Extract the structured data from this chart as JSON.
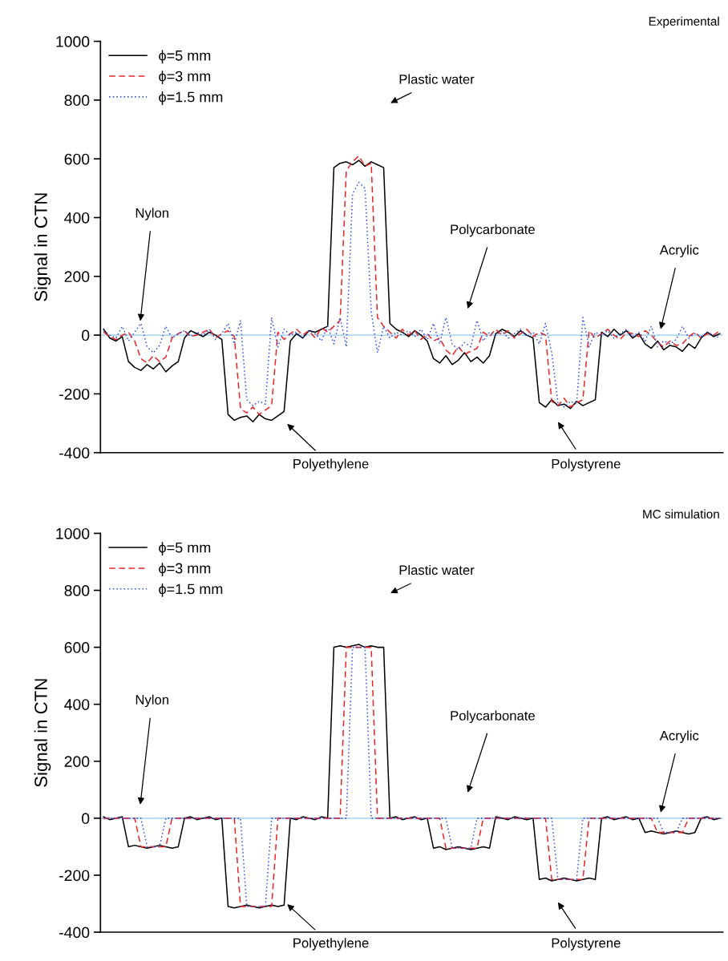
{
  "chart_data": [
    {
      "type": "line",
      "ylabel": "Signal in CTN",
      "categories": [
        null,
        null,
        null,
        null,
        null,
        null,
        null,
        null,
        null,
        null,
        null,
        null,
        null,
        null,
        null,
        null,
        null,
        null,
        null,
        null,
        null,
        null,
        null,
        null,
        null,
        null,
        null,
        null,
        null,
        null,
        null,
        null,
        null,
        null,
        null,
        null,
        null,
        null,
        null,
        null,
        null,
        null,
        null,
        null,
        null,
        null,
        null,
        null,
        null,
        null,
        null,
        null,
        null,
        null,
        null,
        null,
        null,
        null,
        null,
        null,
        null,
        null,
        null,
        null,
        null,
        null,
        null,
        null,
        null,
        null,
        null,
        null,
        null,
        null,
        null,
        null,
        null,
        null,
        null,
        null,
        null,
        null,
        null,
        null,
        null,
        null,
        null,
        null,
        null,
        null,
        null,
        null,
        null,
        null,
        null,
        null,
        null,
        null,
        null,
        null
      ],
      "ylim": [
        -400,
        1000
      ],
      "yticks": [
        -400,
        -200,
        0,
        200,
        400,
        600,
        800,
        1000
      ],
      "tick_labels": "y",
      "legend": "top left",
      "grid": false,
      "ref_lines": [
        {
          "axis": "y",
          "value": 0,
          "color": "#b0d8f0"
        }
      ],
      "annotations": [
        "Experimental",
        "Nylon",
        "Polyethylene",
        "Plastic water",
        "Polycarbonate",
        "Polystyrene",
        "Acrylic"
      ],
      "series": [
        {
          "name": "ϕ=5 mm",
          "color": "#000000",
          "line_style": "solid",
          "values": [
            20,
            -10,
            -20,
            -5,
            -90,
            -110,
            -120,
            -100,
            -115,
            -95,
            -125,
            -105,
            -90,
            -10,
            15,
            5,
            -5,
            10,
            0,
            -15,
            -270,
            -290,
            -280,
            -275,
            -295,
            -270,
            -285,
            -290,
            -275,
            -260,
            -20,
            5,
            -10,
            15,
            10,
            20,
            30,
            570,
            585,
            590,
            580,
            595,
            575,
            590,
            580,
            570,
            40,
            20,
            10,
            -5,
            15,
            0,
            -20,
            -80,
            -95,
            -70,
            -100,
            -85,
            -60,
            -90,
            -75,
            -95,
            -70,
            5,
            20,
            10,
            -5,
            15,
            0,
            -10,
            -230,
            -245,
            -220,
            -240,
            -235,
            -250,
            -225,
            -240,
            -230,
            -220,
            10,
            -5,
            20,
            0,
            15,
            -10,
            5,
            -30,
            -45,
            -20,
            -50,
            -35,
            -40,
            -55,
            -30,
            -45,
            -10,
            10,
            -5,
            5
          ]
        },
        {
          "name": "ϕ=3 mm",
          "color": "#e8262a",
          "line_style": "dashed",
          "values": [
            10,
            -5,
            -15,
            0,
            10,
            -20,
            -80,
            -95,
            -70,
            -90,
            -75,
            -10,
            5,
            15,
            -5,
            0,
            10,
            20,
            -10,
            5,
            15,
            -5,
            -250,
            -265,
            -245,
            -270,
            -255,
            -240,
            10,
            -15,
            5,
            20,
            0,
            15,
            -10,
            25,
            10,
            30,
            50,
            560,
            590,
            610,
            575,
            585,
            60,
            30,
            10,
            -10,
            20,
            0,
            15,
            -15,
            5,
            -20,
            -10,
            -50,
            -70,
            -40,
            -65,
            -55,
            -45,
            10,
            -5,
            20,
            0,
            15,
            -10,
            5,
            20,
            -5,
            10,
            0,
            -225,
            -240,
            -215,
            -245,
            -230,
            -220,
            15,
            -10,
            5,
            20,
            0,
            -15,
            10,
            5,
            -5,
            15,
            0,
            -25,
            -40,
            -20,
            -35,
            -30,
            -5,
            10,
            -10,
            5,
            0,
            15
          ]
        },
        {
          "name": "ϕ=1.5 mm",
          "color": "#3050d8",
          "line_style": "dotted",
          "values": [
            15,
            0,
            -10,
            30,
            -20,
            10,
            40,
            -40,
            -60,
            -35,
            30,
            -10,
            5,
            15,
            -5,
            10,
            0,
            20,
            -15,
            5,
            40,
            -30,
            50,
            -220,
            -240,
            -225,
            -235,
            60,
            -40,
            20,
            0,
            10,
            -10,
            15,
            5,
            -20,
            30,
            -30,
            60,
            -40,
            480,
            520,
            500,
            80,
            -60,
            30,
            -10,
            10,
            0,
            15,
            -5,
            20,
            -15,
            40,
            -30,
            60,
            -30,
            -50,
            -25,
            -40,
            50,
            -20,
            10,
            0,
            15,
            -10,
            5,
            20,
            -5,
            10,
            -30,
            40,
            -60,
            -230,
            -245,
            -225,
            -235,
            60,
            -40,
            10,
            0,
            15,
            -10,
            5,
            20,
            -5,
            10,
            -20,
            30,
            -40,
            -20,
            -30,
            -15,
            30,
            -10,
            5,
            -5,
            10,
            0,
            -10
          ]
        }
      ]
    },
    {
      "type": "line",
      "ylabel": "Signal in CTN",
      "categories": [
        null,
        null,
        null,
        null,
        null,
        null,
        null,
        null,
        null,
        null,
        null,
        null,
        null,
        null,
        null,
        null,
        null,
        null,
        null,
        null,
        null,
        null,
        null,
        null,
        null,
        null,
        null,
        null,
        null,
        null,
        null,
        null,
        null,
        null,
        null,
        null,
        null,
        null,
        null,
        null,
        null,
        null,
        null,
        null,
        null,
        null,
        null,
        null,
        null,
        null,
        null,
        null,
        null,
        null,
        null,
        null,
        null,
        null,
        null,
        null,
        null,
        null,
        null,
        null,
        null,
        null,
        null,
        null,
        null,
        null,
        null,
        null,
        null,
        null,
        null,
        null,
        null,
        null,
        null,
        null,
        null,
        null,
        null,
        null,
        null,
        null,
        null,
        null,
        null,
        null,
        null,
        null,
        null,
        null,
        null,
        null,
        null,
        null,
        null,
        null
      ],
      "ylim": [
        -400,
        1000
      ],
      "yticks": [
        -400,
        -200,
        0,
        200,
        400,
        600,
        800,
        1000
      ],
      "tick_labels": "y",
      "legend": "top left",
      "grid": false,
      "ref_lines": [
        {
          "axis": "y",
          "value": 0,
          "color": "#b0d8f0"
        }
      ],
      "annotations": [
        "MC simulation",
        "Nylon",
        "Polyethylene",
        "Plastic water",
        "Polycarbonate",
        "Polystyrene",
        "Acrylic"
      ],
      "series": [
        {
          "name": "ϕ=5 mm",
          "color": "#000000",
          "line_style": "solid",
          "values": [
            5,
            -5,
            0,
            5,
            -100,
            -95,
            -100,
            -105,
            -100,
            -95,
            -100,
            -105,
            -100,
            0,
            5,
            -5,
            0,
            5,
            -5,
            0,
            -310,
            -315,
            -310,
            -305,
            -310,
            -315,
            -310,
            -305,
            -310,
            -305,
            0,
            -5,
            5,
            0,
            -5,
            5,
            0,
            600,
            605,
            600,
            605,
            610,
            600,
            605,
            600,
            600,
            0,
            5,
            -5,
            0,
            5,
            -5,
            0,
            -105,
            -100,
            -110,
            -105,
            -100,
            -105,
            -110,
            -105,
            -100,
            -105,
            5,
            0,
            -5,
            5,
            0,
            -5,
            0,
            -215,
            -210,
            -220,
            -215,
            -210,
            -215,
            -220,
            -215,
            -210,
            -215,
            0,
            5,
            -5,
            0,
            5,
            -5,
            0,
            -50,
            -45,
            -50,
            -55,
            -50,
            -45,
            -50,
            -55,
            -50,
            0,
            5,
            -5,
            0
          ]
        },
        {
          "name": "ϕ=3 mm",
          "color": "#e8262a",
          "line_style": "dashed",
          "values": [
            0,
            0,
            0,
            0,
            0,
            0,
            -100,
            -100,
            -100,
            -100,
            -100,
            0,
            0,
            0,
            0,
            0,
            0,
            0,
            0,
            0,
            0,
            0,
            -310,
            -310,
            -310,
            -310,
            -310,
            -310,
            0,
            0,
            0,
            0,
            0,
            0,
            0,
            0,
            0,
            0,
            0,
            600,
            600,
            600,
            600,
            600,
            0,
            0,
            0,
            0,
            0,
            0,
            0,
            0,
            0,
            0,
            0,
            -105,
            -105,
            -105,
            -105,
            -105,
            -105,
            0,
            0,
            0,
            0,
            0,
            0,
            0,
            0,
            0,
            0,
            0,
            -215,
            -215,
            -215,
            -215,
            -215,
            -215,
            0,
            0,
            0,
            0,
            0,
            0,
            0,
            0,
            0,
            0,
            0,
            -50,
            -50,
            -50,
            -50,
            -50,
            0,
            0,
            0,
            0,
            0,
            0
          ]
        },
        {
          "name": "ϕ=1.5 mm",
          "color": "#3050d8",
          "line_style": "dotted",
          "values": [
            0,
            0,
            0,
            0,
            0,
            0,
            0,
            -100,
            -100,
            -100,
            0,
            0,
            0,
            0,
            0,
            0,
            0,
            0,
            0,
            0,
            0,
            0,
            0,
            -310,
            -310,
            -310,
            -310,
            0,
            0,
            0,
            0,
            0,
            0,
            0,
            0,
            0,
            0,
            0,
            0,
            0,
            600,
            600,
            600,
            0,
            0,
            0,
            0,
            0,
            0,
            0,
            0,
            0,
            0,
            0,
            0,
            0,
            -105,
            -105,
            -105,
            -105,
            0,
            0,
            0,
            0,
            0,
            0,
            0,
            0,
            0,
            0,
            0,
            0,
            0,
            -215,
            -215,
            -215,
            -215,
            0,
            0,
            0,
            0,
            0,
            0,
            0,
            0,
            0,
            0,
            0,
            0,
            0,
            -50,
            -50,
            -50,
            0,
            0,
            0,
            0,
            0,
            0,
            0
          ]
        }
      ]
    }
  ]
}
